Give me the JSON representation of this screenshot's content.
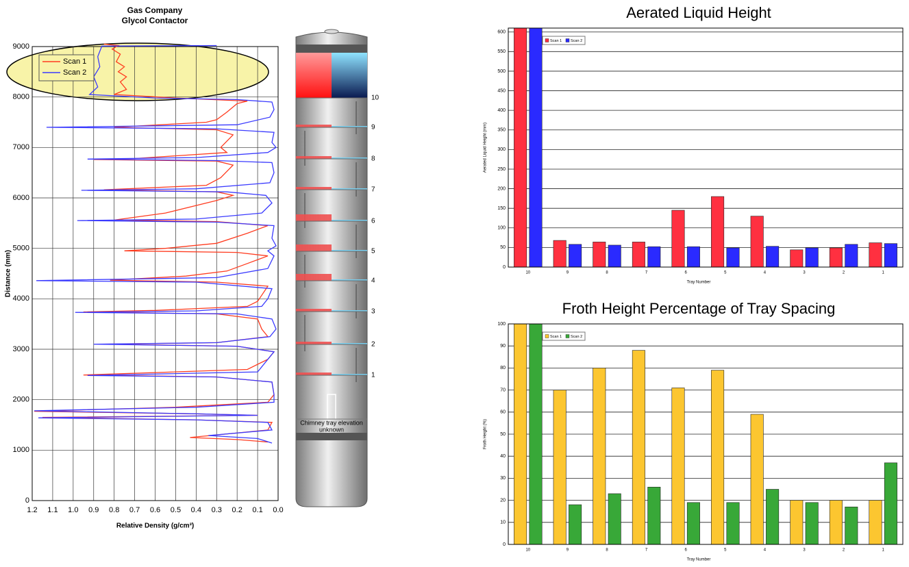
{
  "chart_data": [
    {
      "type": "line",
      "title": "Gas Company",
      "subtitle": "Glycol Contactor",
      "x_label": "Relative Density (g/cm³)",
      "y_label": "Distance (mm)",
      "xlim": [
        1.2,
        0
      ],
      "xticks": [
        1.2,
        1.1,
        {
          "value": 1,
          "label": "1.0"
        },
        0.9,
        0.8,
        0.7,
        0.6,
        0.5,
        0.4,
        0.3,
        0.2,
        0.1,
        {
          "value": 0,
          "label": "0.0"
        }
      ],
      "ylim": [
        0,
        9000
      ],
      "yticks": [
        0,
        1000,
        2000,
        3000,
        4000,
        5000,
        6000,
        7000,
        8000,
        9000
      ],
      "grid": true,
      "legend": "top-left",
      "series": [
        {
          "name": "Scan 1",
          "color": "#ff3b1f",
          "x": [
            0.85,
            0.78,
            0.81,
            0.77,
            0.79,
            0.75,
            0.78,
            0.74,
            0.77,
            0.74,
            0.8,
            0.5,
            0.15,
            0.2,
            0.25,
            0.3,
            0.35,
            0.8,
            0.3,
            0.22,
            0.28,
            0.25,
            0.7,
            0.9,
            0.3,
            0.22,
            0.28,
            0.35,
            0.85,
            0.3,
            0.22,
            0.3,
            0.55,
            0.8,
            0.3,
            0.05,
            0.15,
            0.3,
            0.55,
            0.75,
            0.2,
            0.05,
            0.15,
            0.25,
            0.45,
            0.82,
            0.3,
            0.05,
            0.1,
            0.15,
            0.6,
            0.95,
            0.3,
            0.1,
            0.08,
            0.05,
            0.3,
            0.85,
            0.2,
            0.02,
            0.05,
            0.15,
            0.95,
            0.3,
            0.03,
            0.02,
            0.05,
            0.5,
            1.19,
            0.4,
            0.1,
            1.15,
            0.4,
            0.03,
            0.05,
            0.43,
            0.2,
            0.05
          ],
          "values": [
            9050,
            9020,
            8950,
            8850,
            8700,
            8600,
            8500,
            8400,
            8300,
            8150,
            8050,
            7980,
            7920,
            7870,
            7700,
            7550,
            7500,
            7400,
            7350,
            7250,
            7000,
            6900,
            6780,
            6760,
            6730,
            6650,
            6400,
            6250,
            6160,
            6120,
            6050,
            5950,
            5700,
            5560,
            5530,
            5450,
            5300,
            5100,
            5000,
            4950,
            4920,
            4850,
            4700,
            4550,
            4450,
            4370,
            4330,
            4250,
            3950,
            3850,
            3770,
            3740,
            3700,
            3600,
            3400,
            3250,
            3130,
            3100,
            3060,
            2950,
            2800,
            2600,
            2490,
            2450,
            2350,
            2100,
            1950,
            1850,
            1770,
            1720,
            1690,
            1650,
            1600,
            1550,
            1400,
            1250,
            1210,
            1160
          ]
        },
        {
          "name": "Scan 2",
          "color": "#3a3aff",
          "x": [
            0.3,
            0.86,
            0.88,
            0.87,
            0.9,
            0.88,
            0.92,
            0.6,
            0.2,
            0.03,
            0.02,
            0.04,
            0.2,
            1.13,
            0.3,
            0.02,
            0.03,
            0.01,
            0.05,
            0.4,
            0.93,
            0.3,
            0.03,
            0.02,
            0.04,
            0.4,
            0.96,
            0.25,
            0.06,
            0.03,
            0.08,
            0.4,
            0.98,
            0.3,
            0.02,
            0.03,
            0.01,
            0.05,
            0.02,
            0.05,
            0.3,
            1.18,
            0.4,
            0.03,
            0.05,
            0.08,
            0.4,
            0.99,
            0.2,
            0.03,
            0.01,
            0.04,
            0.3,
            0.9,
            0.2,
            0.02,
            0.05,
            0.1,
            0.93,
            0.3,
            0.03,
            0.02,
            0.02,
            0.4,
            1.19,
            0.4,
            0.1,
            1.17,
            0.4,
            0.05,
            0.03,
            0.34,
            0.1,
            0.03
          ],
          "values": [
            9020,
            9010,
            8800,
            8600,
            8400,
            8200,
            8050,
            7980,
            7950,
            7900,
            7750,
            7600,
            7450,
            7400,
            7370,
            7300,
            7100,
            7000,
            6900,
            6800,
            6770,
            6740,
            6700,
            6500,
            6300,
            6180,
            6150,
            6120,
            6050,
            5900,
            5700,
            5580,
            5550,
            5520,
            5450,
            5200,
            5050,
            4950,
            4850,
            4600,
            4420,
            4360,
            4330,
            4200,
            4000,
            3850,
            3760,
            3730,
            3700,
            3600,
            3400,
            3250,
            3130,
            3100,
            3060,
            2950,
            2800,
            2550,
            2480,
            2450,
            2350,
            2100,
            1950,
            1850,
            1780,
            1720,
            1690,
            1640,
            1600,
            1550,
            1400,
            1290,
            1230,
            1140
          ]
        }
      ]
    },
    {
      "type": "bar",
      "title": "Aerated Liquid Height",
      "x_label": "Tray Number",
      "y_label": "Aerated Liquid Height (mm)",
      "categories": [
        "10",
        "9",
        "8",
        "7",
        "6",
        "5",
        "4",
        "3",
        "2",
        "1"
      ],
      "ylim": [
        0,
        610
      ],
      "yticks": [
        0,
        50,
        100,
        150,
        200,
        250,
        300,
        350,
        400,
        450,
        500,
        550,
        600
      ],
      "grid": true,
      "legend": "top-left",
      "series": [
        {
          "name": "Scan 1",
          "color": "#ff3040",
          "values": [
            610,
            68,
            64,
            64,
            145,
            180,
            130,
            44,
            49,
            62
          ]
        },
        {
          "name": "Scan 2",
          "color": "#2a2aff",
          "values": [
            610,
            58,
            56,
            52,
            52,
            49,
            53,
            49,
            58,
            60
          ]
        }
      ]
    },
    {
      "type": "bar",
      "title": "Froth Height Percentage of Tray Spacing",
      "x_label": "Tray Number",
      "y_label": "Froth Height (%)",
      "categories": [
        "10",
        "9",
        "8",
        "7",
        "6",
        "5",
        "4",
        "3",
        "2",
        "1"
      ],
      "ylim": [
        0,
        100
      ],
      "yticks": [
        0,
        10,
        20,
        30,
        40,
        50,
        60,
        70,
        80,
        90,
        100
      ],
      "grid": true,
      "legend": "top-left",
      "series": [
        {
          "name": "Scan 1",
          "color": "#fcc630",
          "values": [
            100,
            70,
            80,
            88,
            71,
            79,
            59,
            20,
            20,
            20
          ]
        },
        {
          "name": "Scan 2",
          "color": "#38a838",
          "values": [
            100,
            18,
            23,
            26,
            19,
            19,
            25,
            19,
            17,
            37
          ]
        }
      ]
    }
  ],
  "column_diagram": {
    "tray_labels": [
      "10",
      "9",
      "8",
      "7",
      "6",
      "5",
      "4",
      "3",
      "2",
      "1"
    ],
    "note": [
      "Chimney tray elevation",
      "unknown"
    ]
  }
}
